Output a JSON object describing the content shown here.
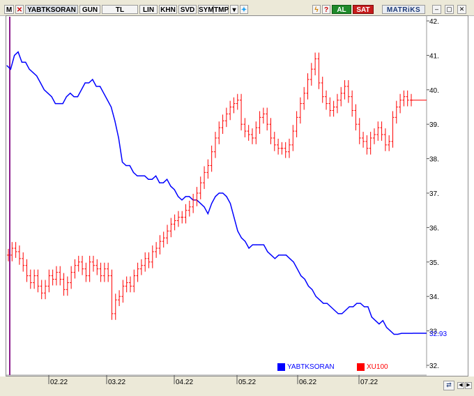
{
  "toolbar": {
    "m_label": "M",
    "symbol": "YABTKSORAN",
    "period": "GUN",
    "currency": "TL",
    "scale": "LIN",
    "khn": "KHN",
    "svd": "SVD",
    "sym": "SYM",
    "tmp": "TMP",
    "al": "AL",
    "sat": "SAT",
    "brand": "MATRiKS",
    "icons": [
      "dropdown-arrow-icon",
      "twitter-icon",
      "lightning-icon",
      "help-icon",
      "minimize-icon",
      "maximize-icon",
      "close-icon"
    ]
  },
  "colors": {
    "series1": "#0000ff",
    "series2": "#ff0000",
    "cursor_line": "#8b1a8b"
  },
  "last_value_label": "32.93",
  "chart_data": {
    "type": "line",
    "x_tick_labels": [
      "02.22",
      "03.22",
      "04.22",
      "05.22",
      "06.22",
      "07.22"
    ],
    "y_tick_labels": [
      "42.",
      "41.",
      "40.",
      "39.",
      "38.",
      "37.",
      "36.",
      "35.",
      "34.",
      "33.",
      "32."
    ],
    "ylim": [
      32,
      42
    ],
    "legend_position": "bottom-right",
    "series": [
      {
        "name": "YABTKSORAN",
        "style": "line",
        "values": [
          40.7,
          40.6,
          41.0,
          41.1,
          40.8,
          40.8,
          40.6,
          40.5,
          40.4,
          40.2,
          40.0,
          39.9,
          39.8,
          39.6,
          39.6,
          39.6,
          39.8,
          39.9,
          39.8,
          39.8,
          40.0,
          40.2,
          40.2,
          40.3,
          40.1,
          40.1,
          39.9,
          39.7,
          39.5,
          39.1,
          38.6,
          37.9,
          37.8,
          37.8,
          37.6,
          37.5,
          37.5,
          37.5,
          37.4,
          37.4,
          37.5,
          37.3,
          37.3,
          37.4,
          37.2,
          37.1,
          36.9,
          36.8,
          36.9,
          36.9,
          36.8,
          36.8,
          36.7,
          36.6,
          36.4,
          36.7,
          36.9,
          37.0,
          37.0,
          36.9,
          36.7,
          36.3,
          35.9,
          35.7,
          35.6,
          35.4,
          35.5,
          35.5,
          35.5,
          35.5,
          35.3,
          35.2,
          35.1,
          35.2,
          35.2,
          35.2,
          35.1,
          35.0,
          34.8,
          34.6,
          34.5,
          34.3,
          34.2,
          34.0,
          33.9,
          33.8,
          33.8,
          33.7,
          33.6,
          33.5,
          33.5,
          33.6,
          33.7,
          33.7,
          33.8,
          33.8,
          33.7,
          33.7,
          33.4,
          33.3,
          33.2,
          33.3,
          33.1,
          33.0,
          32.9,
          32.9,
          32.93,
          32.93,
          32.93,
          32.93
        ]
      },
      {
        "name": "XU100",
        "style": "ohlc",
        "values": [
          35.2,
          35.4,
          35.3,
          35.1,
          34.9,
          34.6,
          34.4,
          34.6,
          34.3,
          34.1,
          34.3,
          34.6,
          34.5,
          34.7,
          34.5,
          34.2,
          34.4,
          34.7,
          34.9,
          35.0,
          34.8,
          34.6,
          35.0,
          34.9,
          34.8,
          34.6,
          34.8,
          34.6,
          33.5,
          33.9,
          34.0,
          34.3,
          34.4,
          34.3,
          34.6,
          34.8,
          34.9,
          35.1,
          35.0,
          35.3,
          35.4,
          35.6,
          35.7,
          35.9,
          36.1,
          36.2,
          36.3,
          36.3,
          36.5,
          36.6,
          36.8,
          37.0,
          37.3,
          37.6,
          37.8,
          38.2,
          38.6,
          38.9,
          39.1,
          39.3,
          39.5,
          39.6,
          39.7,
          39.0,
          38.8,
          38.7,
          38.6,
          38.9,
          39.2,
          39.3,
          39.0,
          38.6,
          38.4,
          38.3,
          38.3,
          38.2,
          38.4,
          38.8,
          39.2,
          39.6,
          39.9,
          40.3,
          40.6,
          40.9,
          40.2,
          39.8,
          39.6,
          39.4,
          39.5,
          39.7,
          39.9,
          40.1,
          39.8,
          39.4,
          39.0,
          38.6,
          38.5,
          38.3,
          38.6,
          38.7,
          38.9,
          38.7,
          38.4,
          38.5,
          39.2,
          39.5,
          39.7,
          39.8,
          39.7,
          39.7
        ]
      }
    ]
  }
}
